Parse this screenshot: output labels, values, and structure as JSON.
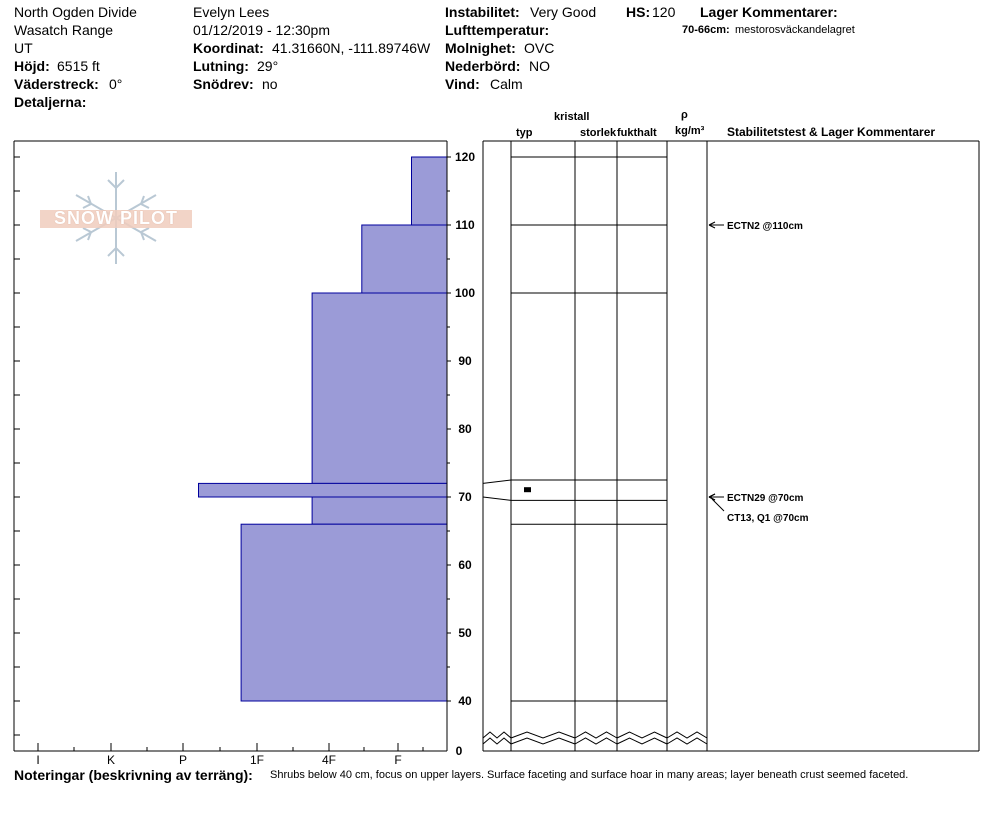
{
  "header": {
    "location": "North Ogden Divide",
    "range": "Wasatch Range",
    "state": "UT",
    "elevation_label": "Höjd:",
    "elevation_value": "6515 ft",
    "aspect_label": "Väderstreck:",
    "aspect_value": "0°",
    "details_label": "Detaljerna:",
    "observer": "Evelyn Lees",
    "datetime": "01/12/2019 - 12:30pm",
    "coord_label": "Koordinat:",
    "coord_value": "41.31660N, -111.89746W",
    "slope_label": "Lutning:",
    "slope_value": "29°",
    "drift_label": "Snödrev:",
    "drift_value": "no",
    "stability_label": "Instabilitet:",
    "stability_value": "Very Good",
    "hs_label": "HS:",
    "hs_value": "120",
    "airtemp_label": "Lufttemperatur:",
    "sky_label": "Molnighet:",
    "sky_value": "OVC",
    "precip_label": "Nederbörd:",
    "precip_value": "NO",
    "wind_label": "Vind:",
    "wind_value": "Calm",
    "layer_comments_label": "Lager Kommentarer:",
    "layer_comment_range": "70-66cm:",
    "layer_comment_text": "mestorosväckandelagret"
  },
  "logo": {
    "text": "SNOW PILOT"
  },
  "columns": {
    "kristall": "kristall",
    "typ": "typ",
    "storlek": "storlek",
    "fukthalt": "fukthalt",
    "rho": "ρ",
    "density_unit": "kg/m³",
    "stability_header": "Stabilitetstest & Lager Kommentarer"
  },
  "chart_data": {
    "type": "bar",
    "title": "",
    "depth_axis": {
      "min": 40,
      "max": 120,
      "ticks": [
        120,
        110,
        100,
        90,
        80,
        70,
        60,
        50,
        40
      ],
      "break_label": "0"
    },
    "hardness_axis": {
      "labels": [
        "I",
        "K",
        "P",
        "1F",
        "4F",
        "F"
      ]
    },
    "layers": [
      {
        "top": 120,
        "bottom": 110,
        "hardness": 0.5
      },
      {
        "top": 110,
        "bottom": 100,
        "hardness": 1.2
      },
      {
        "top": 100,
        "bottom": 72,
        "hardness": 1.9
      },
      {
        "top": 72,
        "bottom": 70,
        "hardness": 3.5
      },
      {
        "top": 70,
        "bottom": 66,
        "hardness": 1.9
      },
      {
        "top": 66,
        "bottom": 40,
        "hardness": 2.9
      }
    ],
    "crystal_layers": [
      72.5,
      69.5,
      66,
      40
    ],
    "tests": [
      {
        "label": "ECTN2 @110cm",
        "depth": 110
      },
      {
        "label": "ECTN29 @70cm",
        "depth": 70
      },
      {
        "label": "CT13, Q1 @70cm",
        "depth": 70
      }
    ]
  },
  "notes": {
    "label": "Noteringar (beskrivning av terräng):",
    "text": "Shrubs below 40 cm, focus on upper layers.  Surface faceting and surface hoar in many areas; layer beneath crust seemed faceted."
  }
}
